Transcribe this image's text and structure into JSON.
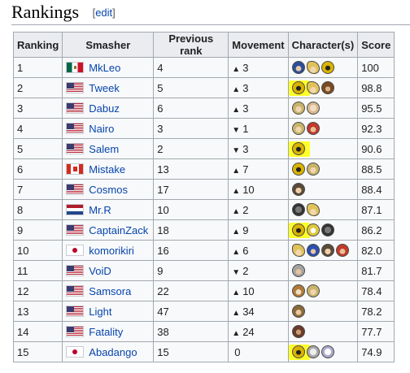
{
  "section": {
    "title": "Rankings",
    "edit_label": "edit"
  },
  "table": {
    "headers": [
      "Ranking",
      "Smasher",
      "Previous rank",
      "Movement",
      "Character(s)",
      "Score"
    ],
    "rows": [
      {
        "rank": "1",
        "flag": "mx",
        "smasher": "MkLeo",
        "previous": "4",
        "arrow": "▲",
        "movement": "3",
        "characters": [
          "megaman-icon",
          "cloud-icon",
          "peach-icon"
        ],
        "highlights": [],
        "score": "100"
      },
      {
        "rank": "2",
        "flag": "us",
        "smasher": "Tweek",
        "previous": "5",
        "arrow": "▲",
        "movement": "3",
        "characters": [
          "peach-icon",
          "cloud-icon",
          "donkey-kong-icon"
        ],
        "highlights": [
          0
        ],
        "score": "98.8"
      },
      {
        "rank": "3",
        "flag": "us",
        "smasher": "Dabuz",
        "previous": "6",
        "arrow": "▲",
        "movement": "3",
        "characters": [
          "zelda-icon",
          "kirby-icon"
        ],
        "highlights": [],
        "score": "95.5"
      },
      {
        "rank": "4",
        "flag": "us",
        "smasher": "Nairo",
        "previous": "3",
        "arrow": "▼",
        "movement": "1",
        "characters": [
          "zelda-icon",
          "mario-icon"
        ],
        "highlights": [],
        "score": "92.3"
      },
      {
        "rank": "5",
        "flag": "us",
        "smasher": "Salem",
        "previous": "2",
        "arrow": "▼",
        "movement": "3",
        "characters": [
          "peach-icon"
        ],
        "highlights": [
          0
        ],
        "score": "90.6"
      },
      {
        "rank": "6",
        "flag": "ca",
        "smasher": "Mistake",
        "previous": "13",
        "arrow": "▲",
        "movement": "7",
        "characters": [
          "peach-icon",
          "zelda-icon"
        ],
        "highlights": [],
        "score": "88.5"
      },
      {
        "rank": "7",
        "flag": "us",
        "smasher": "Cosmos",
        "previous": "17",
        "arrow": "▲",
        "movement": "10",
        "characters": [
          "ness-icon"
        ],
        "highlights": [],
        "score": "88.4"
      },
      {
        "rank": "8",
        "flag": "nl",
        "smasher": "Mr.R",
        "previous": "10",
        "arrow": "▲",
        "movement": "2",
        "characters": [
          "mr-gw-icon",
          "cloud-icon"
        ],
        "highlights": [],
        "score": "87.1"
      },
      {
        "rank": "9",
        "flag": "us",
        "smasher": "CaptainZack",
        "previous": "18",
        "arrow": "▲",
        "movement": "9",
        "characters": [
          "peach-icon",
          "pikachu-icon",
          "mr-gw-icon"
        ],
        "highlights": [
          0
        ],
        "score": "86.2"
      },
      {
        "rank": "10",
        "flag": "jp",
        "smasher": "komorikiri",
        "previous": "16",
        "arrow": "▲",
        "movement": "6",
        "characters": [
          "cloud-icon",
          "sonic-icon",
          "ness-icon",
          "mario-icon"
        ],
        "highlights": [],
        "score": "82.0"
      },
      {
        "rank": "11",
        "flag": "us",
        "smasher": "VoiD",
        "previous": "9",
        "arrow": "▼",
        "movement": "2",
        "characters": [
          "shulk-icon"
        ],
        "highlights": [],
        "score": "81.7"
      },
      {
        "rank": "12",
        "flag": "us",
        "smasher": "Samsora",
        "previous": "22",
        "arrow": "▲",
        "movement": "10",
        "characters": [
          "fox-icon",
          "zelda-icon"
        ],
        "highlights": [],
        "score": "78.4"
      },
      {
        "rank": "13",
        "flag": "us",
        "smasher": "Light",
        "previous": "47",
        "arrow": "▲",
        "movement": "34",
        "characters": [
          "link-icon"
        ],
        "highlights": [],
        "score": "78.2"
      },
      {
        "rank": "14",
        "flag": "us",
        "smasher": "Fatality",
        "previous": "38",
        "arrow": "▲",
        "movement": "24",
        "characters": [
          "ganon-icon"
        ],
        "highlights": [],
        "score": "77.7"
      },
      {
        "rank": "15",
        "flag": "jp",
        "smasher": "Abadango",
        "previous": "15",
        "arrow": "",
        "movement": "0",
        "characters": [
          "peach-icon",
          "wii-fit-icon",
          "pacman-icon"
        ],
        "highlights": [
          0
        ],
        "score": "74.9"
      }
    ]
  },
  "colors": {
    "link": "#0645ad",
    "highlight": "#ffff2a",
    "header_bg": "#eaecf0",
    "cell_bg": "#f8f9fa",
    "border": "#a2a9b1"
  }
}
